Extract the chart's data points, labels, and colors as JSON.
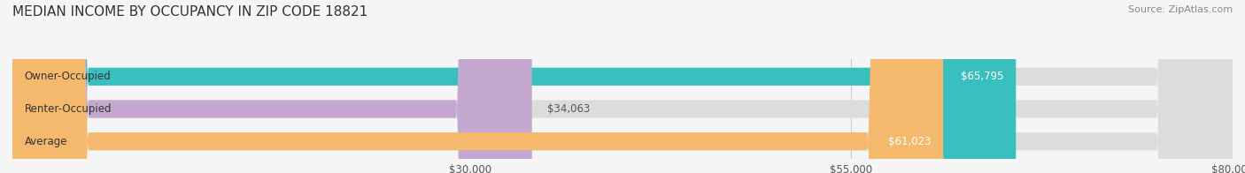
{
  "title": "MEDIAN INCOME BY OCCUPANCY IN ZIP CODE 18821",
  "source": "Source: ZipAtlas.com",
  "categories": [
    "Owner-Occupied",
    "Renter-Occupied",
    "Average"
  ],
  "values": [
    65795,
    34063,
    61023
  ],
  "labels": [
    "$65,795",
    "$34,063",
    "$61,023"
  ],
  "bar_colors": [
    "#3ABFBF",
    "#C4A8D0",
    "#F5B96E"
  ],
  "background_color": "#F5F5F5",
  "bar_bg_color": "#DCDCDC",
  "xlim": [
    0,
    80000
  ],
  "xticks": [
    30000,
    55000,
    80000
  ],
  "xtick_labels": [
    "$30,000",
    "$55,000",
    "$80,000"
  ],
  "title_fontsize": 11,
  "label_fontsize": 8.5,
  "tick_fontsize": 8.5,
  "source_fontsize": 8
}
